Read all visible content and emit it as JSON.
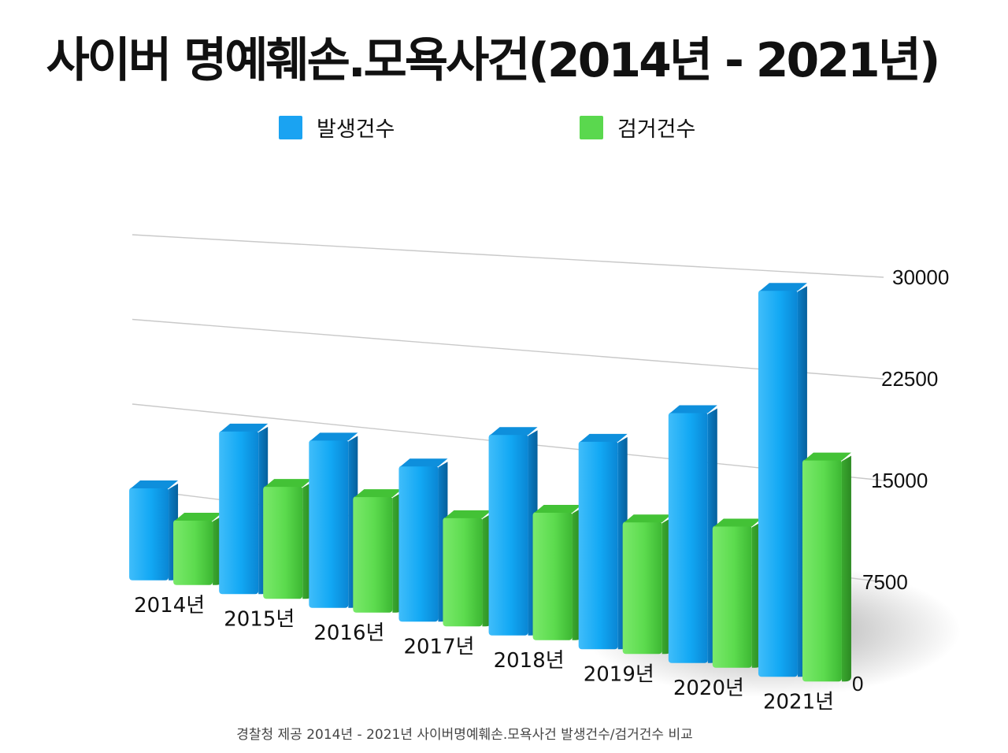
{
  "title": "사이버 명예훼손.모욕사건(2014년 - 2021년)",
  "footnote": "경찰청 제공 2014년 - 2021년 사이버명예훼손.모욕사건 발생건수/검거건수 비교",
  "colors": {
    "occurrence": "#1aa3f2",
    "arrest": "#5ad84e"
  },
  "legend": [
    {
      "label": "발생건수",
      "color": "#1aa3f2"
    },
    {
      "label": "검거건수",
      "color": "#5ad84e"
    }
  ],
  "chart_data": {
    "type": "bar",
    "title": "사이버 명예훼손.모욕사건(2014년 - 2021년)",
    "xlabel": "",
    "ylabel": "",
    "categories": [
      "2014년",
      "2015년",
      "2016년",
      "2017년",
      "2018년",
      "2019년",
      "2020년",
      "2021년"
    ],
    "series": [
      {
        "name": "발생건수",
        "values": [
          8880,
          15043,
          14908,
          13348,
          16633,
          16639,
          19388,
          28988
        ]
      },
      {
        "name": "검거건수",
        "values": [
          6241,
          10379,
          10315,
          9325,
          10590,
          10574,
          10985,
          16630
        ]
      }
    ],
    "yticks": [
      "0",
      "7500",
      "15000",
      "22500",
      "30000"
    ],
    "ylim": [
      0,
      30000
    ],
    "grid": true,
    "legend_position": "top"
  }
}
